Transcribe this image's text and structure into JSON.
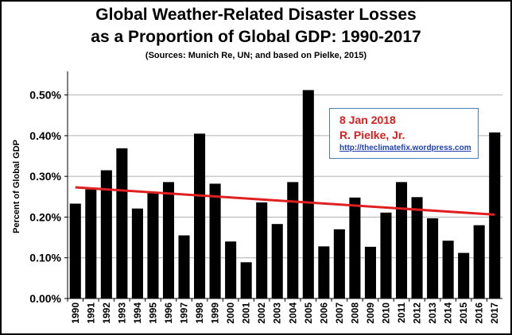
{
  "header": {
    "title_line1": "Global Weather-Related Disaster Losses",
    "title_line2": "as a Proportion of Global GDP: 1990-2017",
    "sources": "(Sources: Munich Re, UN; and based on Pielke, 2015)"
  },
  "annotation": {
    "date": "8 Jan 2018",
    "author": "R. Pielke, Jr.",
    "url": "http://theclimatefix.wordpress.com"
  },
  "colors": {
    "bars": "#000000",
    "trend": "#e02020",
    "grid": "#b0b0b0",
    "annotation_text": "#d42020",
    "link": "#1f3fae"
  },
  "chart_data": {
    "type": "bar",
    "title": "Global Weather-Related Disaster Losses as a Proportion of Global GDP: 1990-2017",
    "subtitle": "(Sources: Munich Re, UN; and based on Pielke, 2015)",
    "xlabel": "",
    "ylabel": "Percent of Global GDP",
    "categories": [
      "1990",
      "1991",
      "1992",
      "1993",
      "1994",
      "1995",
      "1996",
      "1997",
      "1998",
      "1999",
      "2000",
      "2001",
      "2002",
      "2003",
      "2004",
      "2005",
      "2006",
      "2007",
      "2008",
      "2009",
      "2010",
      "2011",
      "2012",
      "2013",
      "2014",
      "2015",
      "2016",
      "2017"
    ],
    "values": [
      0.233,
      0.268,
      0.315,
      0.369,
      0.221,
      0.259,
      0.286,
      0.155,
      0.405,
      0.282,
      0.14,
      0.089,
      0.236,
      0.183,
      0.286,
      0.512,
      0.128,
      0.17,
      0.248,
      0.127,
      0.211,
      0.286,
      0.249,
      0.197,
      0.142,
      0.112,
      0.18,
      0.408
    ],
    "ylim": [
      0,
      0.55
    ],
    "yticks": [
      0.0,
      0.1,
      0.2,
      0.3,
      0.4,
      0.5
    ],
    "ytick_labels": [
      "0.00%",
      "0.10%",
      "0.20%",
      "0.30%",
      "0.40%",
      "0.50%"
    ],
    "grid": true,
    "trendline": {
      "start": 0.273,
      "end": 0.206
    }
  }
}
